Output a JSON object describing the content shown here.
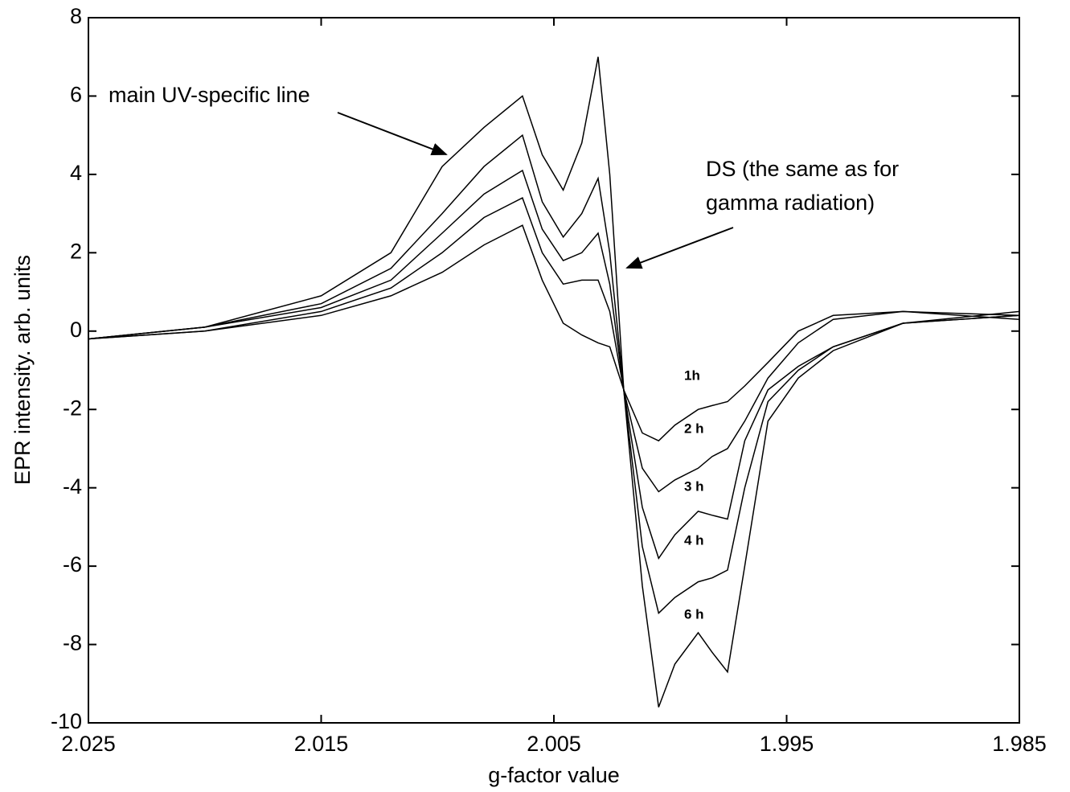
{
  "chart_data": {
    "type": "line",
    "xlabel": "g-factor value",
    "ylabel": "EPR intensity. arb. units",
    "annotations": [
      "main UV-specific line",
      "DS (the same as for",
      "gamma radiation)"
    ],
    "x": [
      2.025,
      2.02,
      2.015,
      2.012,
      2.0098,
      2.008,
      2.00635,
      2.0055,
      2.0046,
      2.0038,
      2.0031,
      2.0026,
      2.002,
      2.0012,
      2.0005,
      1.9998,
      1.9988,
      1.9982,
      1.99754,
      1.9968,
      1.9958,
      1.9945,
      1.993,
      1.99,
      1.985
    ],
    "series": [
      {
        "name": "1h",
        "color": "#000000",
        "values": [
          -0.2,
          0.0,
          0.4,
          0.9,
          1.5,
          2.2,
          2.7,
          1.3,
          0.2,
          -0.1,
          -0.3,
          -0.4,
          -1.5,
          -2.6,
          -2.8,
          -2.4,
          -2.0,
          -1.9,
          -1.8,
          -1.4,
          -0.8,
          0.0,
          0.4,
          0.5,
          0.3
        ]
      },
      {
        "name": "2 h",
        "color": "#000000",
        "values": [
          -0.2,
          0.0,
          0.5,
          1.1,
          2.0,
          2.9,
          3.4,
          2.0,
          1.2,
          1.3,
          1.3,
          0.5,
          -1.5,
          -3.5,
          -4.1,
          -3.8,
          -3.5,
          -3.2,
          -3.0,
          -2.3,
          -1.2,
          -0.3,
          0.3,
          0.5,
          0.4
        ]
      },
      {
        "name": "3 h",
        "color": "#000000",
        "values": [
          -0.2,
          0.1,
          0.6,
          1.3,
          2.5,
          3.5,
          4.1,
          2.6,
          1.8,
          2.0,
          2.5,
          1.2,
          -1.5,
          -4.5,
          -5.8,
          -5.2,
          -4.6,
          -4.7,
          -4.8,
          -2.8,
          -1.5,
          -0.9,
          -0.4,
          0.2,
          0.4
        ]
      },
      {
        "name": "4 h",
        "color": "#000000",
        "values": [
          -0.2,
          0.1,
          0.7,
          1.6,
          3.0,
          4.2,
          5.0,
          3.3,
          2.4,
          3.0,
          3.9,
          2.0,
          -1.5,
          -5.5,
          -7.2,
          -6.8,
          -6.4,
          -6.3,
          -6.1,
          -4.0,
          -1.8,
          -1.0,
          -0.4,
          0.2,
          0.4
        ]
      },
      {
        "name": "6 h",
        "color": "#000000",
        "values": [
          -0.2,
          0.1,
          0.9,
          2.0,
          4.2,
          5.2,
          6.0,
          4.5,
          3.6,
          4.8,
          7.0,
          4.0,
          -1.5,
          -6.5,
          -9.6,
          -8.5,
          -7.7,
          -8.2,
          -8.7,
          -6.0,
          -2.3,
          -1.2,
          -0.5,
          0.2,
          0.5
        ]
      }
    ],
    "xlim": [
      2.025,
      1.985
    ],
    "xticks": [
      2.025,
      2.015,
      2.005,
      1.995,
      1.985
    ],
    "ylim": [
      -10,
      8
    ],
    "yticks": [
      -10,
      -8,
      -6,
      -4,
      -2,
      0,
      2,
      4,
      6,
      8
    ],
    "grid": false
  }
}
